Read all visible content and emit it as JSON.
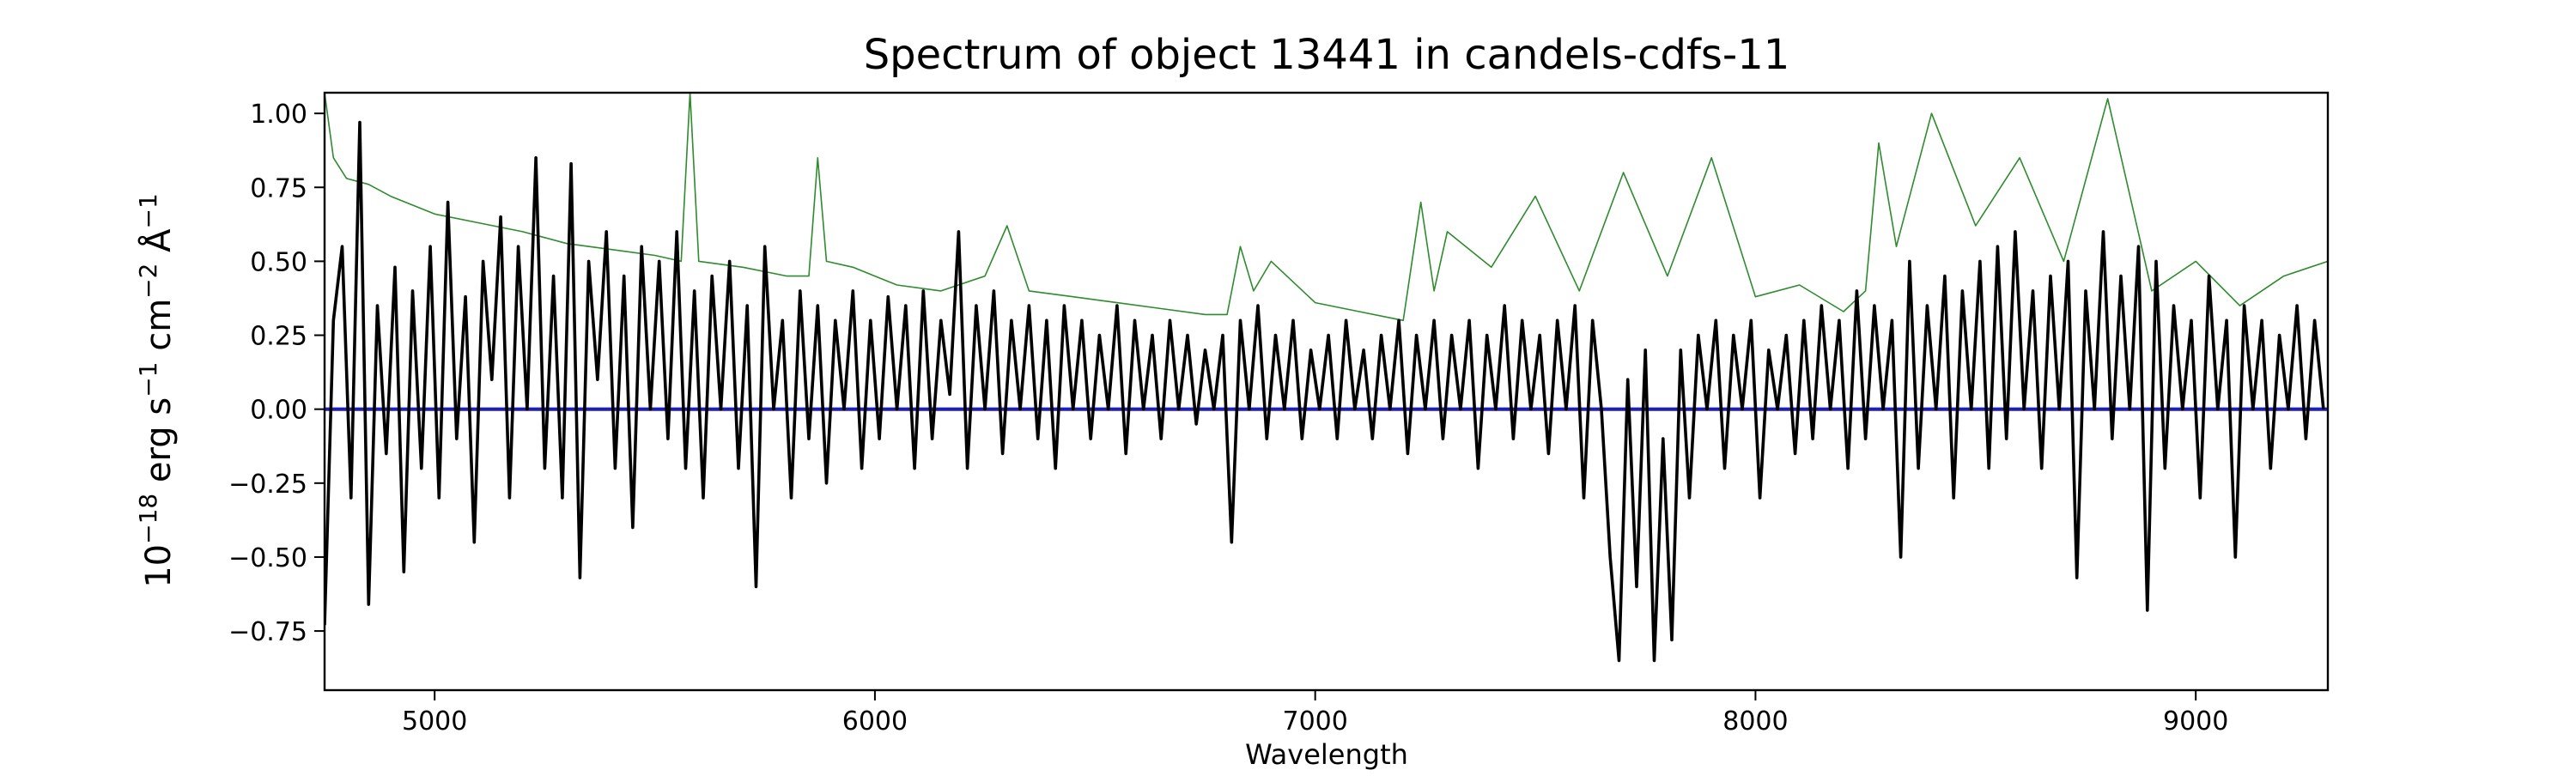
{
  "chart_data": {
    "type": "line",
    "title": "Spectrum of object 13441 in candels-cdfs-11",
    "xlabel": "Wavelength",
    "ylabel": {
      "prefix": "10",
      "exponent": "−18",
      "units": " erg s",
      "s_exp": "−1",
      "cm": " cm",
      "cm_exp": "−2",
      "angstrom": " Å",
      "a_exp": "−1"
    },
    "xlim": [
      4750,
      9300
    ],
    "ylim": [
      -0.95,
      1.07
    ],
    "xticks": [
      {
        "value": 5000,
        "label": "5000"
      },
      {
        "value": 6000,
        "label": "6000"
      },
      {
        "value": 7000,
        "label": "7000"
      },
      {
        "value": 8000,
        "label": "8000"
      },
      {
        "value": 9000,
        "label": "9000"
      }
    ],
    "yticks": [
      {
        "value": 1.0,
        "label": "1.00"
      },
      {
        "value": 0.75,
        "label": "0.75"
      },
      {
        "value": 0.5,
        "label": "0.50"
      },
      {
        "value": 0.25,
        "label": "0.25"
      },
      {
        "value": 0.0,
        "label": "0.00"
      },
      {
        "value": -0.25,
        "label": "−0.25"
      },
      {
        "value": -0.5,
        "label": "−0.50"
      },
      {
        "value": -0.75,
        "label": "−0.75"
      }
    ],
    "grid": false,
    "colors": {
      "flux": "#000000",
      "error": "#2e8b2e",
      "model": "#1f1fb4"
    },
    "series": [
      {
        "key": "error",
        "x": [
          4750,
          4770,
          4800,
          4850,
          4900,
          5000,
          5100,
          5200,
          5300,
          5400,
          5500,
          5560,
          5580,
          5600,
          5700,
          5800,
          5850,
          5870,
          5890,
          5950,
          6050,
          6150,
          6250,
          6300,
          6350,
          6450,
          6550,
          6650,
          6750,
          6800,
          6830,
          6860,
          6900,
          7000,
          7100,
          7200,
          7240,
          7270,
          7300,
          7400,
          7500,
          7600,
          7700,
          7800,
          7900,
          8000,
          8100,
          8200,
          8250,
          8280,
          8320,
          8400,
          8500,
          8600,
          8700,
          8800,
          8900,
          9000,
          9100,
          9200,
          9300
        ],
        "y": [
          1.07,
          0.85,
          0.78,
          0.76,
          0.72,
          0.66,
          0.63,
          0.6,
          0.56,
          0.54,
          0.52,
          0.5,
          1.07,
          0.5,
          0.48,
          0.45,
          0.45,
          0.85,
          0.5,
          0.48,
          0.42,
          0.4,
          0.45,
          0.62,
          0.4,
          0.38,
          0.36,
          0.34,
          0.32,
          0.32,
          0.55,
          0.4,
          0.5,
          0.36,
          0.33,
          0.3,
          0.7,
          0.4,
          0.6,
          0.48,
          0.72,
          0.4,
          0.8,
          0.45,
          0.85,
          0.38,
          0.42,
          0.33,
          0.4,
          0.9,
          0.55,
          1.0,
          0.62,
          0.85,
          0.5,
          1.05,
          0.4,
          0.5,
          0.35,
          0.45,
          0.5
        ]
      },
      {
        "key": "model",
        "x": [
          4750,
          9300
        ],
        "y": [
          0.0,
          0.0
        ]
      },
      {
        "key": "flux",
        "x": [
          4750,
          4770,
          4790,
          4810,
          4830,
          4850,
          4870,
          4890,
          4910,
          4930,
          4950,
          4970,
          4990,
          5010,
          5030,
          5050,
          5070,
          5090,
          5110,
          5130,
          5150,
          5170,
          5190,
          5210,
          5230,
          5250,
          5270,
          5290,
          5310,
          5330,
          5350,
          5370,
          5390,
          5410,
          5430,
          5450,
          5470,
          5490,
          5510,
          5530,
          5550,
          5570,
          5590,
          5610,
          5630,
          5650,
          5670,
          5690,
          5710,
          5730,
          5750,
          5770,
          5790,
          5810,
          5830,
          5850,
          5870,
          5890,
          5910,
          5930,
          5950,
          5970,
          5990,
          6010,
          6030,
          6050,
          6070,
          6090,
          6110,
          6130,
          6150,
          6170,
          6190,
          6210,
          6230,
          6250,
          6270,
          6290,
          6310,
          6330,
          6350,
          6370,
          6390,
          6410,
          6430,
          6450,
          6470,
          6490,
          6510,
          6530,
          6550,
          6570,
          6590,
          6610,
          6630,
          6650,
          6670,
          6690,
          6710,
          6730,
          6750,
          6770,
          6790,
          6810,
          6830,
          6850,
          6870,
          6890,
          6910,
          6930,
          6950,
          6970,
          6990,
          7010,
          7030,
          7050,
          7070,
          7090,
          7110,
          7130,
          7150,
          7170,
          7190,
          7210,
          7230,
          7250,
          7270,
          7290,
          7310,
          7330,
          7350,
          7370,
          7390,
          7410,
          7430,
          7450,
          7470,
          7490,
          7510,
          7530,
          7550,
          7570,
          7590,
          7610,
          7630,
          7650,
          7670,
          7690,
          7710,
          7730,
          7750,
          7770,
          7790,
          7810,
          7830,
          7850,
          7870,
          7890,
          7910,
          7930,
          7950,
          7970,
          7990,
          8010,
          8030,
          8050,
          8070,
          8090,
          8110,
          8130,
          8150,
          8170,
          8190,
          8210,
          8230,
          8250,
          8270,
          8290,
          8310,
          8330,
          8350,
          8370,
          8390,
          8410,
          8430,
          8450,
          8470,
          8490,
          8510,
          8530,
          8550,
          8570,
          8590,
          8610,
          8630,
          8650,
          8670,
          8690,
          8710,
          8730,
          8750,
          8770,
          8790,
          8810,
          8830,
          8850,
          8870,
          8890,
          8910,
          8930,
          8950,
          8970,
          8990,
          9010,
          9030,
          9050,
          9070,
          9090,
          9110,
          9130,
          9150,
          9170,
          9190,
          9210,
          9230,
          9250,
          9270,
          9290
        ],
        "y": [
          -0.73,
          0.3,
          0.55,
          -0.3,
          0.97,
          -0.66,
          0.35,
          -0.15,
          0.48,
          -0.55,
          0.4,
          -0.2,
          0.55,
          -0.3,
          0.7,
          -0.1,
          0.38,
          -0.45,
          0.5,
          0.1,
          0.65,
          -0.3,
          0.55,
          0.0,
          0.85,
          -0.2,
          0.45,
          -0.3,
          0.83,
          -0.57,
          0.5,
          0.1,
          0.6,
          -0.2,
          0.45,
          -0.4,
          0.55,
          0.0,
          0.5,
          -0.1,
          0.6,
          -0.2,
          0.4,
          -0.3,
          0.45,
          0.0,
          0.5,
          -0.2,
          0.35,
          -0.6,
          0.55,
          0.0,
          0.3,
          -0.3,
          0.4,
          -0.1,
          0.35,
          -0.25,
          0.3,
          0.0,
          0.4,
          -0.2,
          0.3,
          -0.1,
          0.38,
          0.0,
          0.35,
          -0.2,
          0.4,
          -0.1,
          0.3,
          0.05,
          0.6,
          -0.2,
          0.35,
          0.0,
          0.4,
          -0.15,
          0.3,
          0.0,
          0.35,
          -0.1,
          0.3,
          -0.2,
          0.35,
          0.0,
          0.3,
          -0.1,
          0.25,
          0.0,
          0.35,
          -0.15,
          0.3,
          0.0,
          0.25,
          -0.1,
          0.3,
          0.0,
          0.25,
          -0.05,
          0.2,
          0.0,
          0.25,
          -0.45,
          0.3,
          0.0,
          0.35,
          -0.1,
          0.25,
          0.0,
          0.3,
          -0.1,
          0.2,
          0.0,
          0.25,
          -0.1,
          0.3,
          0.0,
          0.2,
          -0.1,
          0.25,
          0.0,
          0.3,
          -0.15,
          0.25,
          0.0,
          0.3,
          -0.1,
          0.25,
          0.0,
          0.3,
          -0.2,
          0.25,
          0.0,
          0.35,
          -0.1,
          0.3,
          0.0,
          0.25,
          -0.15,
          0.3,
          0.0,
          0.35,
          -0.3,
          0.3,
          0.0,
          -0.5,
          -0.85,
          0.1,
          -0.6,
          0.2,
          -0.85,
          -0.1,
          -0.78,
          0.2,
          -0.3,
          0.25,
          0.0,
          0.3,
          -0.2,
          0.25,
          0.0,
          0.3,
          -0.3,
          0.2,
          0.0,
          0.25,
          -0.15,
          0.3,
          -0.1,
          0.35,
          0.0,
          0.3,
          -0.2,
          0.4,
          -0.1,
          0.35,
          0.0,
          0.3,
          -0.5,
          0.5,
          -0.2,
          0.35,
          0.0,
          0.45,
          -0.3,
          0.4,
          0.0,
          0.5,
          -0.2,
          0.55,
          -0.1,
          0.6,
          0.0,
          0.4,
          -0.2,
          0.45,
          0.0,
          0.5,
          -0.57,
          0.4,
          0.0,
          0.6,
          -0.1,
          0.45,
          0.0,
          0.55,
          -0.68,
          0.5,
          -0.2,
          0.35,
          0.0,
          0.3,
          -0.3,
          0.45,
          0.0,
          0.3,
          -0.5,
          0.35,
          0.0,
          0.3,
          -0.2,
          0.25,
          0.0,
          0.35,
          -0.1,
          0.3,
          0.0
        ]
      }
    ]
  }
}
